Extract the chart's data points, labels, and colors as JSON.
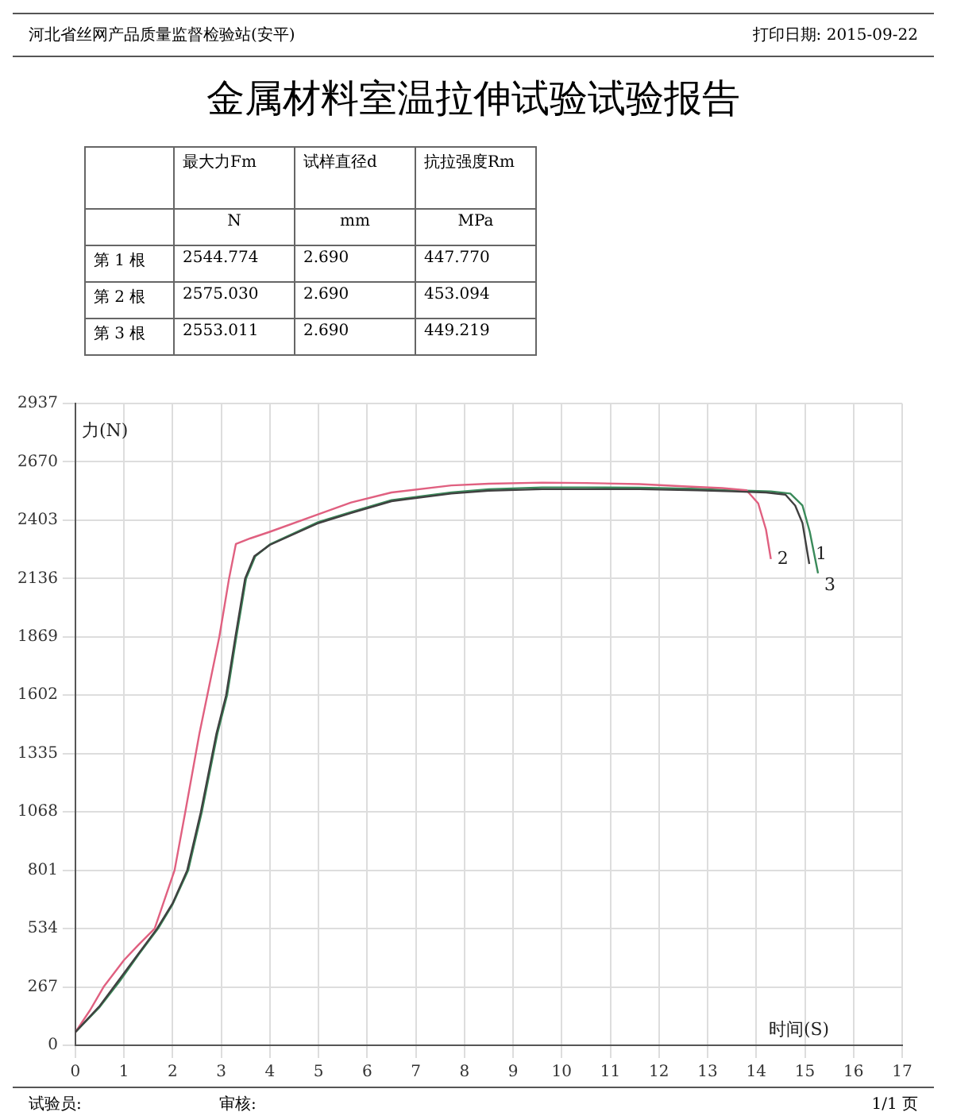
{
  "chart_data": [
    {
      "type": "other",
      "title": "金属材料室温拉伸试验试验报告",
      "annotations": [
        "河北省丝网产品质量监督检验站(安平)",
        "打印日期: 2015-09-22",
        "最大力Fm",
        "试样直径d",
        "抗拉强度Rm",
        "N",
        "mm",
        "MPa",
        "第 1 根",
        "2544.774",
        "2.690",
        "447.770",
        "第 2 根",
        "2575.030",
        "2.690",
        "453.094",
        "第 3 根",
        "2553.011",
        "2.690",
        "449.219"
      ]
    },
    {
      "type": "line",
      "ylabel": "力(N)",
      "xlabel": "时间(S)",
      "xlim": [
        0,
        17
      ],
      "xticks": [
        0,
        1,
        2,
        3,
        4,
        5,
        6,
        7,
        8,
        9,
        10,
        11,
        12,
        13,
        14,
        15,
        16,
        17
      ],
      "ylim": [
        0,
        2937
      ],
      "yticks": [
        0,
        267,
        534,
        801,
        1068,
        1335,
        1602,
        1869,
        2136,
        2403,
        2670,
        2937
      ],
      "grid": true,
      "legend": false,
      "marker": "none",
      "line_style": "solid",
      "annotations": [
        "试验员:",
        "审核:",
        "1/1 页"
      ],
      "series": [
        {
          "name": "1",
          "color": "#404040",
          "x": [
            0,
            0.5,
            0.9,
            1.3,
            1.68,
            2.0,
            2.3,
            2.58,
            2.9,
            3.1,
            3.29,
            3.49,
            3.68,
            4,
            5,
            5.67,
            6.5,
            7.73,
            8.5,
            9.6,
            10.5,
            11.6,
            12.8,
            13.5,
            14.2,
            14.6,
            14.8,
            14.95,
            15.09
          ],
          "values": [
            60,
            180,
            300,
            420,
            534,
            650,
            801,
            1068,
            1426,
            1602,
            1869,
            2136,
            2238,
            2290,
            2390,
            2436,
            2490,
            2525,
            2538,
            2545,
            2545,
            2545,
            2540,
            2535,
            2530,
            2520,
            2470,
            2390,
            2203
          ]
        },
        {
          "name": "2",
          "color": "#e06080",
          "x": [
            0,
            0.3,
            0.58,
            1,
            1.3,
            1.63,
            2.04,
            2.26,
            2.55,
            2.96,
            3.16,
            3.3,
            3.6,
            4,
            5,
            5.67,
            6.5,
            7.73,
            8.5,
            9.6,
            10.5,
            11.6,
            12.5,
            13.3,
            13.8,
            14.04,
            14.2,
            14.3
          ],
          "values": [
            60,
            160,
            267,
            390,
            460,
            534,
            801,
            1068,
            1426,
            1869,
            2136,
            2294,
            2320,
            2350,
            2430,
            2484,
            2530,
            2562,
            2570,
            2575,
            2573,
            2568,
            2558,
            2550,
            2540,
            2480,
            2360,
            2225
          ]
        },
        {
          "name": "3",
          "color": "#3a8a5a",
          "x": [
            0,
            0.5,
            0.9,
            1.3,
            1.7,
            2.0,
            2.32,
            2.6,
            2.92,
            3.12,
            3.31,
            3.51,
            3.7,
            4,
            5,
            5.67,
            6.5,
            7.73,
            8.5,
            9.6,
            10.5,
            11.6,
            12.8,
            13.5,
            14.3,
            14.7,
            14.95,
            15.1,
            15.27
          ],
          "values": [
            60,
            175,
            290,
            415,
            534,
            645,
            801,
            1068,
            1426,
            1602,
            1869,
            2136,
            2238,
            2292,
            2395,
            2440,
            2495,
            2530,
            2545,
            2553,
            2553,
            2552,
            2546,
            2540,
            2535,
            2525,
            2470,
            2350,
            2160
          ]
        }
      ]
    }
  ]
}
